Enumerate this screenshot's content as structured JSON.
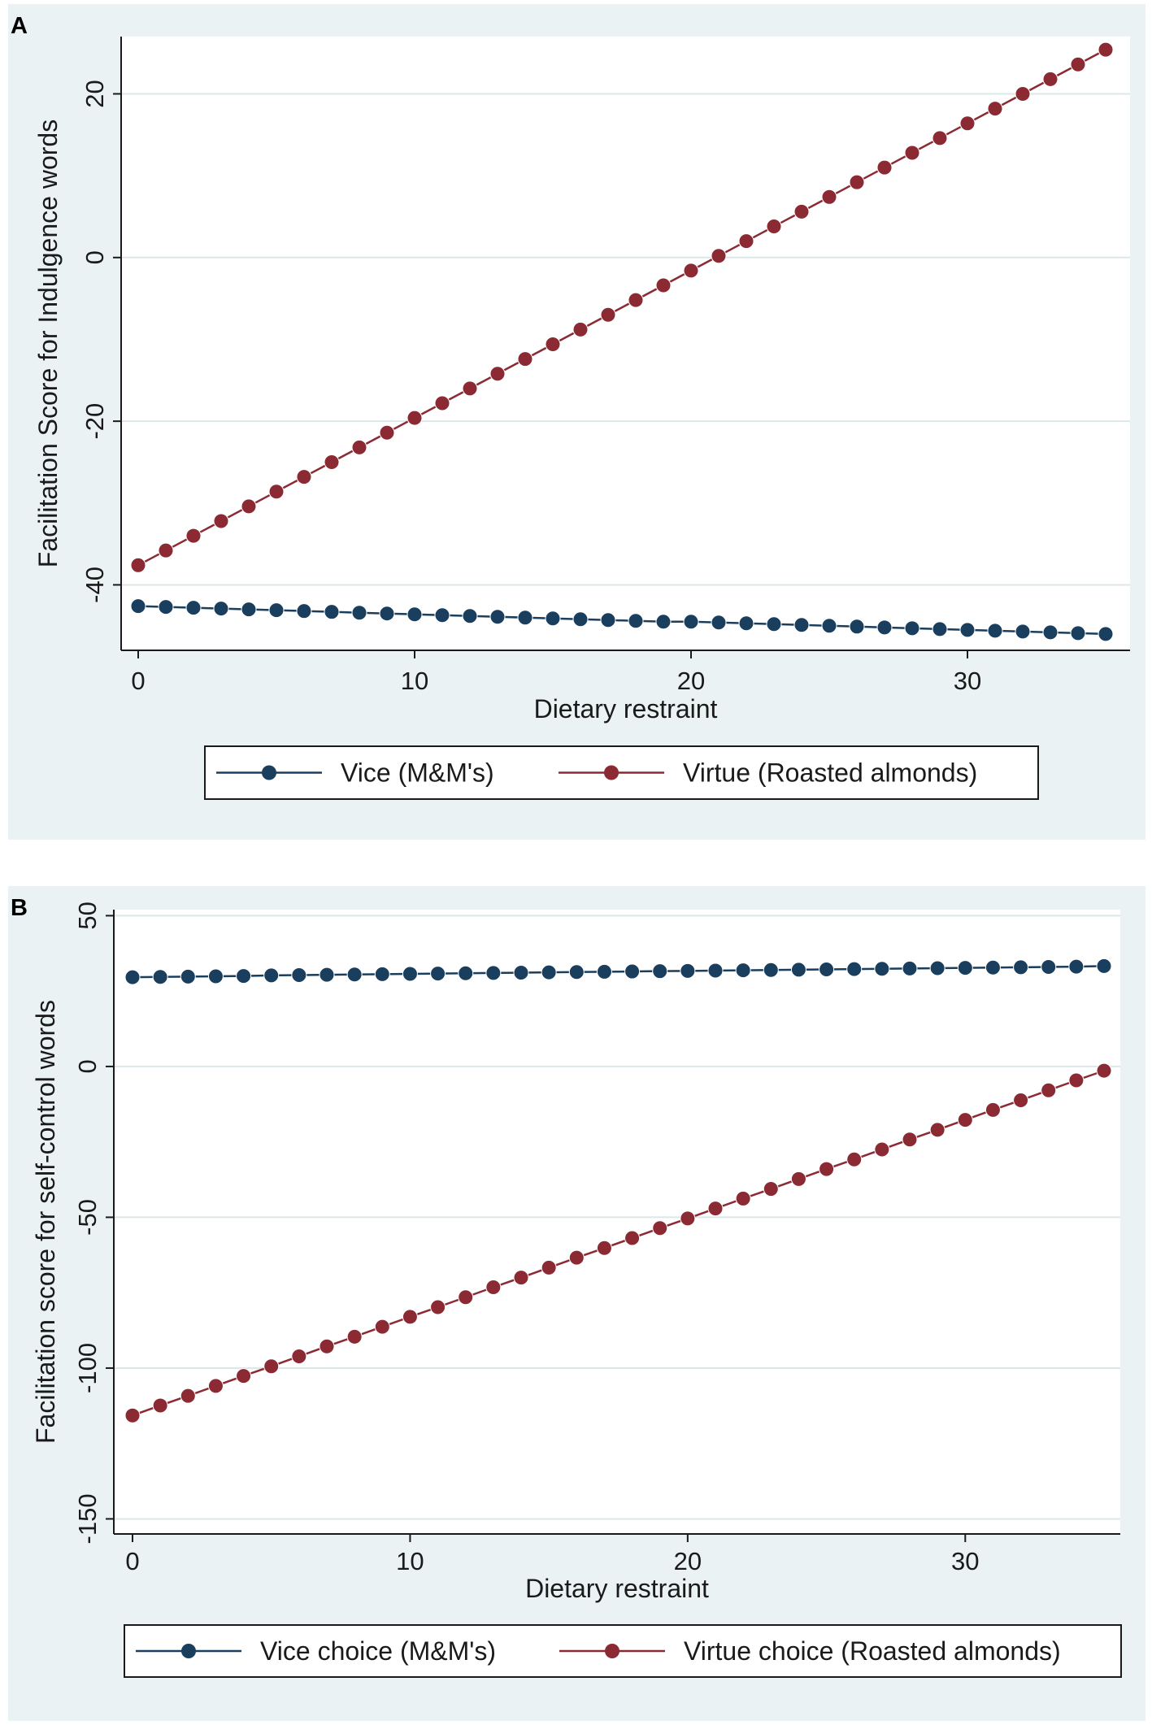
{
  "colors": {
    "panel_bg": "#eaf2f3",
    "vice": "#1a3e5e",
    "virtue": "#8c2a33",
    "grid": "#dde7ea",
    "axis": "#1a1a1a"
  },
  "chart_data": [
    {
      "panel": "A",
      "type": "line",
      "xlabel": "Dietary restraint",
      "ylabel": "Facilitation Score for Indulgence words",
      "xlim": [
        0,
        35
      ],
      "ylim": [
        -48,
        27
      ],
      "xticks": [
        0,
        10,
        20,
        30
      ],
      "yticks": [
        -40,
        -20,
        0,
        20
      ],
      "x": [
        0,
        1,
        2,
        3,
        4,
        5,
        6,
        7,
        8,
        9,
        10,
        11,
        12,
        13,
        14,
        15,
        16,
        17,
        18,
        19,
        20,
        21,
        22,
        23,
        24,
        25,
        26,
        27,
        28,
        29,
        30,
        31,
        32,
        33,
        34,
        35
      ],
      "series": [
        {
          "name": "Vice (M&M's)",
          "color": "#1a3e5e",
          "values": [
            -42.6,
            -42.7,
            -42.8,
            -42.9,
            -43.0,
            -43.1,
            -43.2,
            -43.3,
            -43.4,
            -43.5,
            -43.6,
            -43.7,
            -43.8,
            -43.9,
            -44.0,
            -44.1,
            -44.2,
            -44.3,
            -44.4,
            -44.5,
            -44.5,
            -44.6,
            -44.7,
            -44.8,
            -44.9,
            -45.0,
            -45.1,
            -45.2,
            -45.3,
            -45.4,
            -45.5,
            -45.6,
            -45.7,
            -45.8,
            -45.9,
            -46.0
          ]
        },
        {
          "name": "Virtue (Roasted almonds)",
          "color": "#8c2a33",
          "values": [
            -37.6,
            -35.8,
            -34.0,
            -32.2,
            -30.4,
            -28.6,
            -26.8,
            -25.0,
            -23.2,
            -21.4,
            -19.6,
            -17.8,
            -16.0,
            -14.2,
            -12.4,
            -10.6,
            -8.8,
            -7.0,
            -5.2,
            -3.4,
            -1.6,
            0.2,
            2.0,
            3.8,
            5.6,
            7.4,
            9.2,
            11.0,
            12.8,
            14.6,
            16.4,
            18.2,
            20.0,
            21.8,
            23.6,
            25.4
          ]
        }
      ],
      "legend": [
        "Vice (M&M's)",
        "Virtue (Roasted almonds)"
      ]
    },
    {
      "panel": "B",
      "type": "line",
      "xlabel": "Dietary restraint",
      "ylabel": "Facilitation score for self-control words",
      "xlim": [
        0,
        35
      ],
      "ylim": [
        -155,
        52
      ],
      "xticks": [
        0,
        10,
        20,
        30
      ],
      "yticks": [
        -150,
        -100,
        -50,
        0,
        50
      ],
      "x": [
        0,
        1,
        2,
        3,
        4,
        5,
        6,
        7,
        8,
        9,
        10,
        11,
        12,
        13,
        14,
        15,
        16,
        17,
        18,
        19,
        20,
        21,
        22,
        23,
        24,
        25,
        26,
        27,
        28,
        29,
        30,
        31,
        32,
        33,
        34,
        35
      ],
      "series": [
        {
          "name": "Vice choice (M&M's)",
          "color": "#1a3e5e",
          "values": [
            29.6,
            29.7,
            29.8,
            29.9,
            30.0,
            30.2,
            30.3,
            30.4,
            30.5,
            30.6,
            30.7,
            30.8,
            30.9,
            31.0,
            31.1,
            31.2,
            31.3,
            31.4,
            31.5,
            31.6,
            31.7,
            31.8,
            31.9,
            32.0,
            32.1,
            32.2,
            32.3,
            32.4,
            32.5,
            32.6,
            32.7,
            32.8,
            32.9,
            33.0,
            33.1,
            33.3
          ]
        },
        {
          "name": "Virtue choice (Roasted almonds)",
          "color": "#8c2a33",
          "values": [
            -115.7,
            -112.4,
            -109.2,
            -105.9,
            -102.6,
            -99.4,
            -96.1,
            -92.8,
            -89.6,
            -86.3,
            -83.0,
            -79.8,
            -76.5,
            -73.2,
            -70.0,
            -66.7,
            -63.4,
            -60.2,
            -56.9,
            -53.6,
            -50.4,
            -47.1,
            -43.8,
            -40.6,
            -37.3,
            -34.0,
            -30.8,
            -27.5,
            -24.2,
            -21.0,
            -17.7,
            -14.4,
            -11.2,
            -7.9,
            -4.6,
            -1.4
          ]
        }
      ],
      "legend": [
        "Vice choice (M&M's)",
        "Virtue choice (Roasted almonds)"
      ]
    }
  ]
}
